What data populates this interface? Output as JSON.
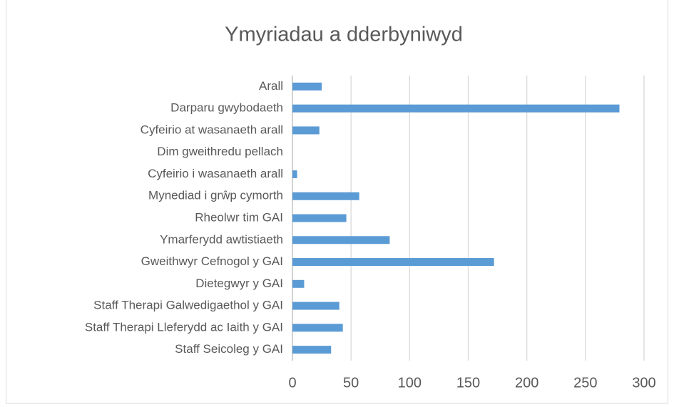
{
  "chart_data": {
    "type": "bar",
    "orientation": "horizontal",
    "title": "Ymyriadau a dderbyniwyd",
    "categories": [
      "Arall",
      "Darparu gwybodaeth",
      "Cyfeirio at wasanaeth arall",
      "Dim gweithredu pellach",
      "Cyfeirio i wasanaeth arall",
      "Mynediad i grŵp cymorth",
      "Rheolwr tim GAI",
      "Ymarferydd awtistiaeth",
      "Gweithwyr Cefnogol y GAI",
      "Dietegwyr y GAI",
      "Staff Therapi Galwedigaethol y GAI",
      "Staff Therapi Lleferydd ac Iaith y GAI",
      "Staff Seicoleg y GAI"
    ],
    "values": [
      25,
      279,
      23,
      0,
      4,
      57,
      46,
      83,
      172,
      10,
      40,
      43,
      33
    ],
    "color": "#5b9bd5",
    "xlim": [
      0,
      300
    ],
    "xticks": [
      0,
      50,
      100,
      150,
      200,
      250,
      300
    ],
    "grid": true
  }
}
